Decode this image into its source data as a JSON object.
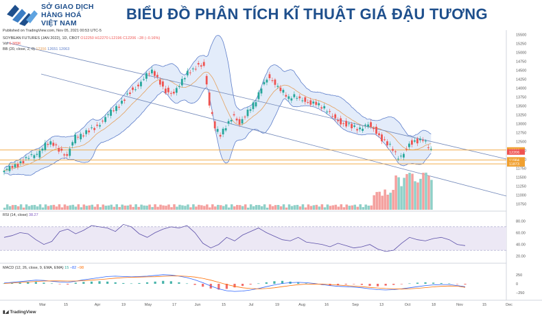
{
  "header": {
    "logo_line1": "SỞ GIAO DỊCH",
    "logo_line2": "HÀNG HOÁ",
    "logo_line3": "VIỆT NAM",
    "title": "BIỂU ĐỒ PHÂN TÍCH KĨ THUẬT GIÁ ĐẬU TƯƠNG",
    "published": "Published on TradingView.com, Nov 05, 2021 00:53 UTC-5"
  },
  "legend": {
    "symbol": "SOYBEAN FUTURES (JAN 2022), 1D, CBOT",
    "ohlc": "O12250 H12270 L12196 C12206 −28 (−0.16%)",
    "vol_label": "Vol",
    "vol_value": "6.389K",
    "bb_label": "BB (20, close, 2, 0)",
    "bb_mid": "12356",
    "bb_up": "12651",
    "bb_low": "12063",
    "rsi_label": "RSI (14, close)",
    "rsi_value": "38.27",
    "macd_label": "MACD (12, 26, close, 9, EMA, EMA)",
    "macd_v1": "15",
    "macd_v2": "−82",
    "macd_v3": "−98"
  },
  "footer": {
    "tradingview": "TradingView"
  },
  "colors": {
    "up": "#26a69a",
    "down": "#ef5350",
    "bb_line": "#5b7cc9",
    "bb_fill": "#e3ecfa",
    "basis": "#e5a05c",
    "support": "#f0a030",
    "rsi_band": "#ece8f5",
    "title": "#1e4f8c"
  },
  "chart_data": [
    {
      "type": "candlestick",
      "title": "SOYBEAN FUTURES (JAN 2022), 1D, CBOT",
      "y_axis_ticks": [
        15500,
        15250,
        15000,
        14750,
        14500,
        14250,
        14000,
        13750,
        13500,
        13250,
        13000,
        12750,
        12500,
        12250,
        12000,
        11750,
        11500,
        11250,
        11000,
        10750
      ],
      "ylim": [
        10700,
        15550
      ],
      "x_tick_labels": [
        "Mar",
        "15",
        "Apr",
        "19",
        "May",
        "17",
        "Jun",
        "15",
        "Jul",
        "19",
        "Aug",
        "16",
        "Sep",
        "13",
        "Oct",
        "18",
        "Nov",
        "15",
        "Dec"
      ],
      "price_labels": [
        {
          "value": 12263,
          "kind": "level"
        },
        {
          "value": 12206,
          "kind": "last"
        },
        {
          "value": 11984,
          "kind": "level"
        },
        {
          "value": 11873,
          "kind": "level"
        }
      ],
      "horizontal_levels": [
        12263,
        11984,
        11873
      ],
      "close_path": [
        [
          0,
          11650
        ],
        [
          6,
          11780
        ],
        [
          12,
          11950
        ],
        [
          18,
          12050
        ],
        [
          24,
          12150
        ],
        [
          30,
          12400
        ],
        [
          36,
          12450
        ],
        [
          41,
          12300
        ],
        [
          46,
          12050
        ],
        [
          52,
          12650
        ],
        [
          58,
          12700
        ],
        [
          66,
          12900
        ],
        [
          74,
          13150
        ],
        [
          82,
          13450
        ],
        [
          90,
          13800
        ],
        [
          96,
          14000
        ],
        [
          103,
          14300
        ],
        [
          109,
          14450
        ],
        [
          114,
          14200
        ],
        [
          118,
          13900
        ],
        [
          123,
          13800
        ],
        [
          128,
          14100
        ],
        [
          133,
          14350
        ],
        [
          138,
          14500
        ],
        [
          142,
          14700
        ],
        [
          146,
          14650
        ],
        [
          150,
          13500
        ],
        [
          154,
          12900
        ],
        [
          158,
          12700
        ],
        [
          163,
          12950
        ],
        [
          168,
          13250
        ],
        [
          172,
          13050
        ],
        [
          178,
          13300
        ],
        [
          183,
          13550
        ],
        [
          188,
          14050
        ],
        [
          193,
          14300
        ],
        [
          198,
          14150
        ],
        [
          203,
          13950
        ],
        [
          208,
          13650
        ],
        [
          213,
          13800
        ],
        [
          218,
          13700
        ],
        [
          223,
          13550
        ],
        [
          228,
          13600
        ],
        [
          233,
          13450
        ],
        [
          238,
          13250
        ],
        [
          243,
          13150
        ],
        [
          248,
          13000
        ],
        [
          254,
          12900
        ],
        [
          260,
          12850
        ],
        [
          266,
          12950
        ],
        [
          272,
          12800
        ],
        [
          278,
          12500
        ],
        [
          284,
          12250
        ],
        [
          288,
          12050
        ],
        [
          292,
          12150
        ],
        [
          296,
          12400
        ],
        [
          301,
          12550
        ],
        [
          306,
          12580
        ],
        [
          310,
          12300
        ],
        [
          312,
          12206
        ]
      ],
      "y_label_bb_upper": 12651,
      "y_label_bb_basis": 12356,
      "y_label_bb_lower": 12063
    },
    {
      "type": "bar",
      "title": "Vol",
      "last_value": "6.389K"
    },
    {
      "type": "line",
      "title": "RSI (14, close)",
      "y_axis_ticks": [
        80,
        60,
        40,
        20
      ],
      "ylim": [
        15,
        85
      ],
      "band": [
        30,
        70
      ],
      "last_value": 38.27,
      "values": [
        52,
        55,
        60,
        58,
        48,
        40,
        45,
        62,
        66,
        58,
        64,
        72,
        70,
        68,
        62,
        74,
        70,
        58,
        52,
        60,
        66,
        70,
        68,
        72,
        60,
        42,
        34,
        40,
        52,
        46,
        56,
        62,
        68,
        60,
        54,
        48,
        46,
        52,
        44,
        42,
        40,
        36,
        42,
        38,
        34,
        36,
        40,
        32,
        28,
        30,
        42,
        52,
        48,
        46,
        50,
        52,
        48,
        40,
        38
      ]
    },
    {
      "type": "bar",
      "title": "MACD (12, 26, close, 9, EMA, EMA)",
      "y_axis_ticks": [
        250,
        0,
        -250
      ],
      "ylim": [
        -340,
        340
      ],
      "values_label": [
        "15",
        "−82",
        "−98"
      ],
      "histogram": [
        10,
        20,
        30,
        40,
        50,
        30,
        10,
        -10,
        -20,
        30,
        50,
        60,
        70,
        60,
        40,
        20,
        10,
        20,
        40,
        60,
        80,
        70,
        40,
        10,
        -30,
        -80,
        -130,
        -160,
        -140,
        -100,
        -60,
        -20,
        10,
        40,
        70,
        80,
        60,
        30,
        10,
        -10,
        -30,
        -50,
        -40,
        -20,
        -10,
        -30,
        -60,
        -70,
        -50,
        -30,
        -10,
        10,
        30,
        40,
        30,
        20,
        10,
        -10,
        -20
      ],
      "macd_line": [
        20,
        40,
        60,
        80,
        100,
        90,
        70,
        50,
        40,
        70,
        110,
        140,
        170,
        200,
        210,
        200,
        190,
        200,
        210,
        230,
        250,
        240,
        210,
        170,
        110,
        30,
        -60,
        -140,
        -190,
        -210,
        -200,
        -170,
        -130,
        -80,
        -30,
        10,
        30,
        40,
        30,
        10,
        -20,
        -50,
        -70,
        -80,
        -90,
        -110,
        -140,
        -160,
        -170,
        -160,
        -140,
        -110,
        -80,
        -50,
        -30,
        -20,
        -20,
        -50,
        -82
      ],
      "signal_line": [
        10,
        20,
        35,
        50,
        65,
        75,
        80,
        80,
        75,
        75,
        85,
        100,
        115,
        135,
        155,
        170,
        180,
        185,
        190,
        195,
        205,
        215,
        215,
        205,
        185,
        150,
        100,
        40,
        -20,
        -70,
        -110,
        -130,
        -140,
        -130,
        -110,
        -80,
        -50,
        -25,
        -10,
        -5,
        -10,
        -20,
        -35,
        -50,
        -65,
        -80,
        -100,
        -115,
        -130,
        -140,
        -145,
        -140,
        -125,
        -105,
        -85,
        -70,
        -60,
        -65,
        -98
      ]
    }
  ]
}
